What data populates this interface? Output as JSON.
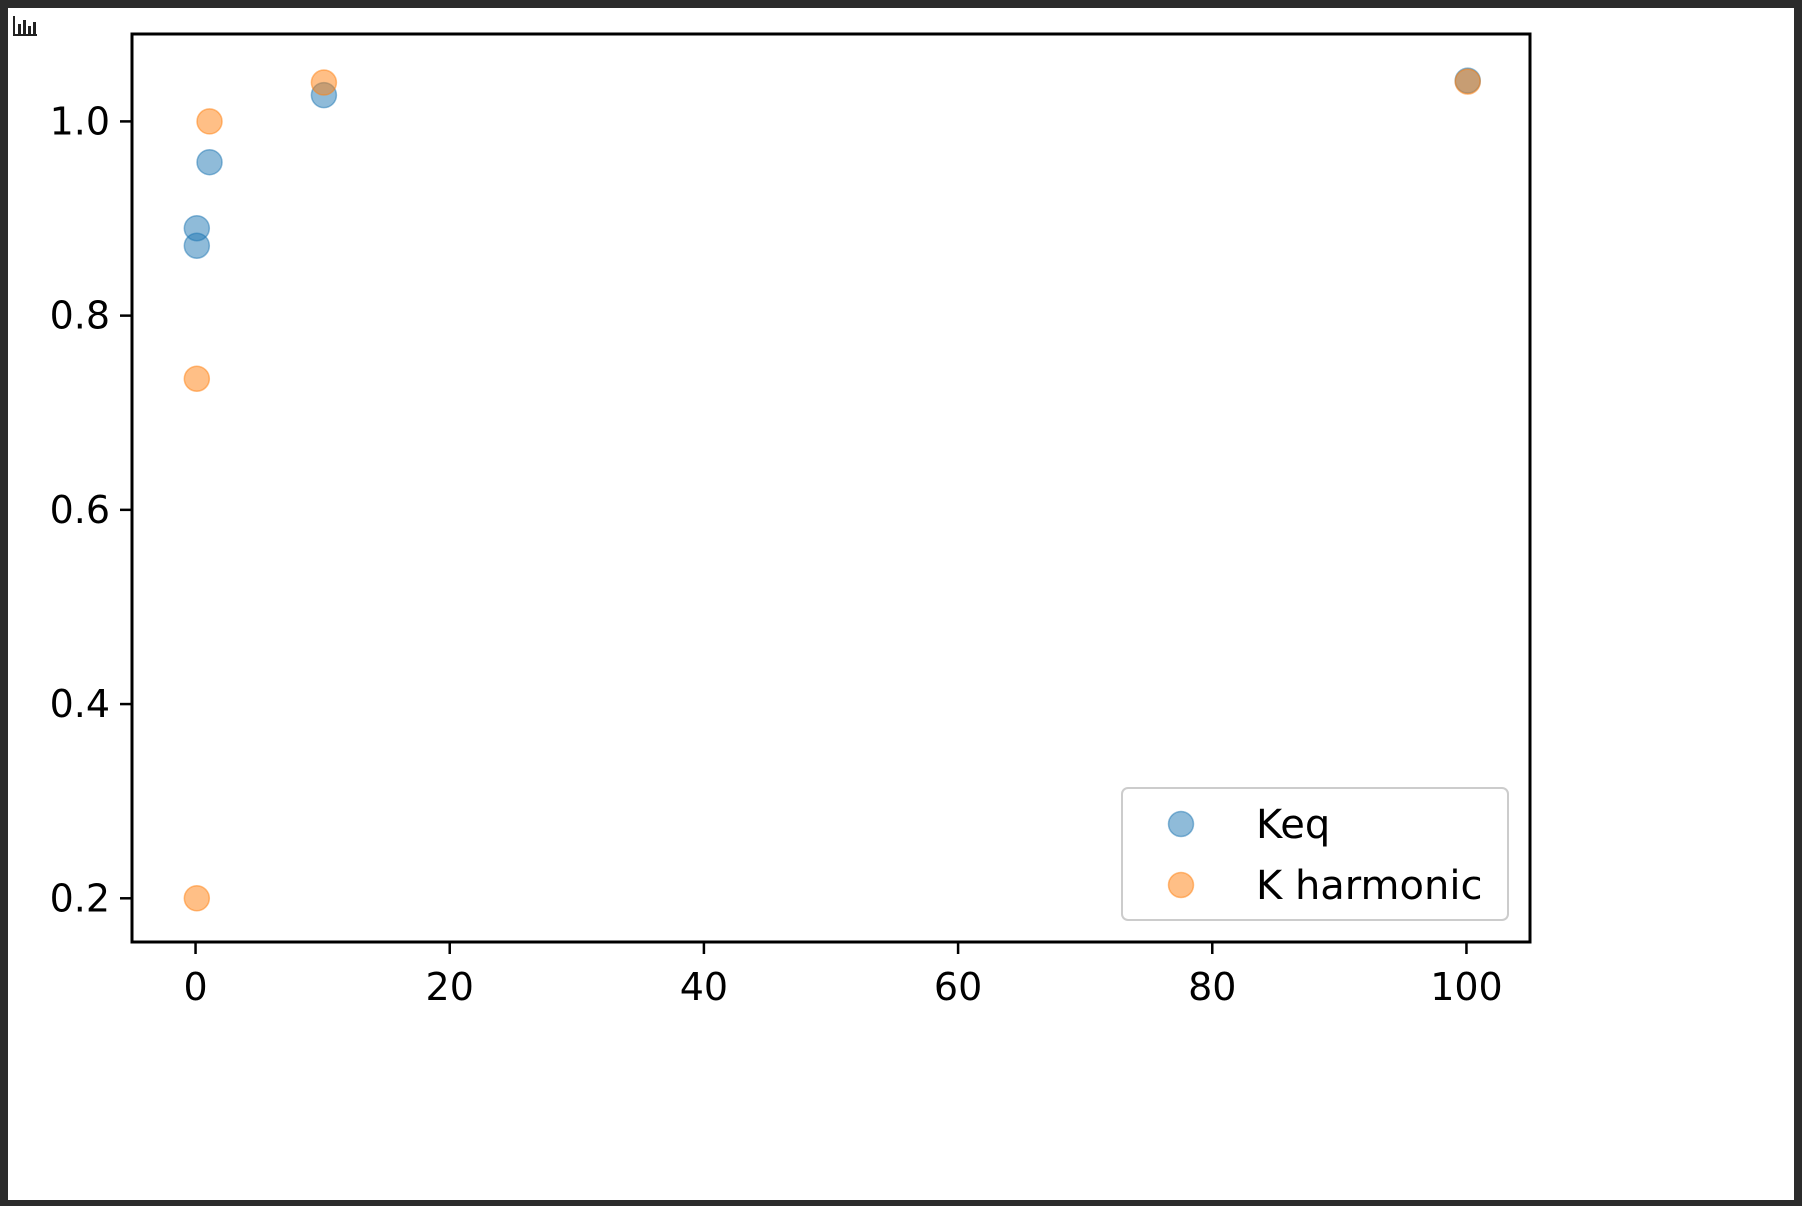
{
  "chart_data": {
    "type": "scatter",
    "title": "",
    "xlabel": "",
    "ylabel": "",
    "xlim": [
      -5,
      105
    ],
    "ylim": [
      0.155,
      1.09
    ],
    "xticks": [
      0,
      20,
      40,
      60,
      80,
      100
    ],
    "yticks": [
      0.2,
      0.4,
      0.6,
      0.8,
      1.0
    ],
    "xtick_labels": [
      "0",
      "20",
      "40",
      "60",
      "80",
      "100"
    ],
    "ytick_labels": [
      "0.2",
      "0.4",
      "0.6",
      "0.8",
      "1.0"
    ],
    "grid": false,
    "legend_position": "lower-right",
    "series": [
      {
        "name": "Keq",
        "color": "#1f77b4",
        "points": [
          {
            "x": 0.1,
            "y": 0.872
          },
          {
            "x": 0.1,
            "y": 0.89
          },
          {
            "x": 1.1,
            "y": 0.958
          },
          {
            "x": 10.1,
            "y": 1.027
          },
          {
            "x": 100.1,
            "y": 1.042
          }
        ]
      },
      {
        "name": "K harmonic",
        "color": "#ff7f0e",
        "points": [
          {
            "x": 0.1,
            "y": 0.2
          },
          {
            "x": 0.1,
            "y": 0.735
          },
          {
            "x": 1.1,
            "y": 1.0
          },
          {
            "x": 10.1,
            "y": 1.04
          },
          {
            "x": 100.1,
            "y": 1.041
          }
        ]
      }
    ]
  },
  "icons": {
    "plot_toggle": "bar-chart-icon"
  }
}
